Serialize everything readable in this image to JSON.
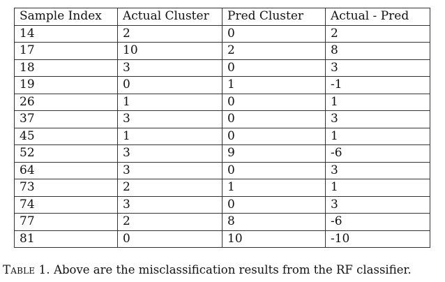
{
  "table": {
    "headers": [
      "Sample Index",
      "Actual Cluster",
      "Pred Cluster",
      "Actual - Pred"
    ],
    "rows": [
      [
        "14",
        "2",
        "0",
        "2"
      ],
      [
        "17",
        "10",
        "2",
        "8"
      ],
      [
        "18",
        "3",
        "0",
        "3"
      ],
      [
        "19",
        "0",
        "1",
        "-1"
      ],
      [
        "26",
        "1",
        "0",
        "1"
      ],
      [
        "37",
        "3",
        "0",
        "3"
      ],
      [
        "45",
        "1",
        "0",
        "1"
      ],
      [
        "52",
        "3",
        "9",
        "-6"
      ],
      [
        "64",
        "3",
        "0",
        "3"
      ],
      [
        "73",
        "2",
        "1",
        "1"
      ],
      [
        "74",
        "3",
        "0",
        "3"
      ],
      [
        "77",
        "2",
        "8",
        "-6"
      ],
      [
        "81",
        "0",
        "10",
        "-10"
      ]
    ]
  },
  "caption": {
    "label": "Table 1.",
    "text": "Above are the misclassification results from the RF classifier."
  }
}
